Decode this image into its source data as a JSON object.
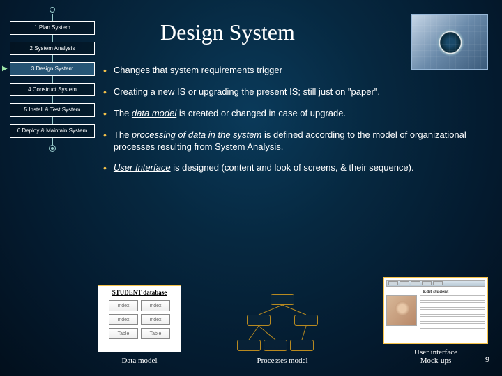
{
  "title": "Design System",
  "slide_number": "9",
  "nav": {
    "items": [
      {
        "label": "1 Plan System",
        "active": false
      },
      {
        "label": "2 System Analysis",
        "active": false
      },
      {
        "label": "3 Design System",
        "active": true
      },
      {
        "label": "4 Construct System",
        "active": false
      },
      {
        "label": "5 Install & Test System",
        "active": false
      },
      {
        "label": "6 Deploy & Maintain System",
        "active": false
      }
    ]
  },
  "bullets": [
    {
      "html": "Changes that system requirements trigger"
    },
    {
      "html": "Creating a new IS or upgrading the present IS; still just on \"paper\"."
    },
    {
      "html": "The <u><em>data model</em></u> is created or changed in case of upgrade."
    },
    {
      "html": "The <u><em>processing of data in the system</em></u> is defined according to the model of organizational processes resulting from System Analysis."
    },
    {
      "html": "<u><em>User Interface</em></u> is designed (content and look of screens, & their sequence)."
    }
  ],
  "models": {
    "data": {
      "caption": "Data model",
      "header": "STUDENT database",
      "cells": [
        "Index",
        "Index",
        "Index",
        "Index",
        "Table",
        "Table"
      ]
    },
    "processes": {
      "caption": "Processes model"
    },
    "ui": {
      "caption": "User interface Mock-ups",
      "header": "Edit student"
    }
  },
  "colors": {
    "bullet": "#f6c34a",
    "box_border": "#f6c34a",
    "text": "#ffffff"
  }
}
